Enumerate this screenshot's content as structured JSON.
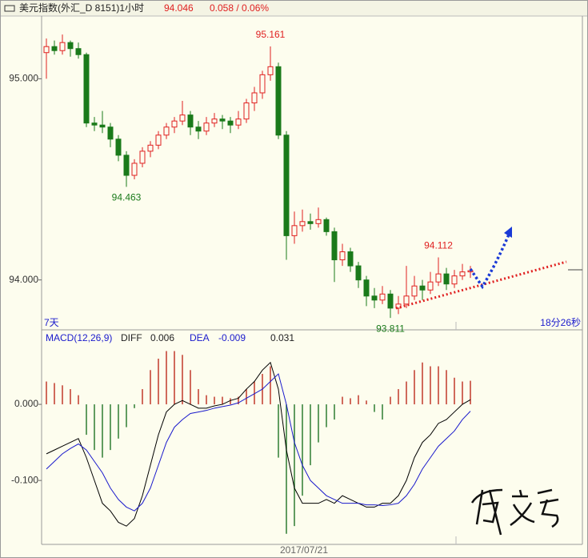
{
  "header": {
    "title": "美元指数(外汇_D 8151)1小时",
    "last": "94.046",
    "change": "0.058 / 0.06%"
  },
  "chart_data": [
    {
      "type": "candlestick",
      "ylim": [
        93.752,
        95.312
      ],
      "yticks": [
        {
          "value": 95,
          "label": "95.000"
        },
        {
          "value": 94,
          "label": "94.000"
        }
      ],
      "up_color": "#e02020",
      "down_color": "#1a7a1a",
      "annotations": [
        "95.161",
        "94.463",
        "94.112",
        "93.811"
      ],
      "left_label": "7天",
      "right_label": "18分26秒",
      "ohlc": [
        [
          95.13,
          95.2,
          95.0,
          95.16
        ],
        [
          95.16,
          95.19,
          95.12,
          95.14
        ],
        [
          95.14,
          95.22,
          95.12,
          95.18
        ],
        [
          95.18,
          95.19,
          95.11,
          95.15
        ],
        [
          95.15,
          95.18,
          95.1,
          95.12
        ],
        [
          95.12,
          95.13,
          94.76,
          94.78
        ],
        [
          94.78,
          94.81,
          94.74,
          94.77
        ],
        [
          94.77,
          94.84,
          94.73,
          94.76
        ],
        [
          94.76,
          94.78,
          94.66,
          94.7
        ],
        [
          94.7,
          94.72,
          94.59,
          94.62
        ],
        [
          94.62,
          94.64,
          94.463,
          94.52
        ],
        [
          94.52,
          94.6,
          94.5,
          94.58
        ],
        [
          94.58,
          94.66,
          94.56,
          94.64
        ],
        [
          94.64,
          94.69,
          94.61,
          94.67
        ],
        [
          94.67,
          94.74,
          94.65,
          94.72
        ],
        [
          94.72,
          94.78,
          94.7,
          94.76
        ],
        [
          94.76,
          94.81,
          94.73,
          94.79
        ],
        [
          94.79,
          94.89,
          94.77,
          94.82
        ],
        [
          94.82,
          94.84,
          94.72,
          94.76
        ],
        [
          94.76,
          94.79,
          94.7,
          94.74
        ],
        [
          94.74,
          94.81,
          94.72,
          94.78
        ],
        [
          94.78,
          94.83,
          94.76,
          94.8
        ],
        [
          94.8,
          94.82,
          94.75,
          94.79
        ],
        [
          94.79,
          94.81,
          94.73,
          94.77
        ],
        [
          94.77,
          94.84,
          94.75,
          94.8
        ],
        [
          94.8,
          94.9,
          94.78,
          94.88
        ],
        [
          94.88,
          94.96,
          94.84,
          94.93
        ],
        [
          94.93,
          95.04,
          94.9,
          95.02
        ],
        [
          95.02,
          95.161,
          94.99,
          95.06
        ],
        [
          95.06,
          95.08,
          94.7,
          94.72
        ],
        [
          94.72,
          94.74,
          94.1,
          94.22
        ],
        [
          94.22,
          94.34,
          94.18,
          94.27
        ],
        [
          94.27,
          94.35,
          94.24,
          94.29
        ],
        [
          94.29,
          94.33,
          94.25,
          94.28
        ],
        [
          94.28,
          94.36,
          94.26,
          94.3
        ],
        [
          94.3,
          94.31,
          94.22,
          94.24
        ],
        [
          94.24,
          94.26,
          93.99,
          94.1
        ],
        [
          94.1,
          94.18,
          94.07,
          94.14
        ],
        [
          94.14,
          94.16,
          94.04,
          94.07
        ],
        [
          94.07,
          94.09,
          93.96,
          94.0
        ],
        [
          94.0,
          94.02,
          93.87,
          93.92
        ],
        [
          93.92,
          93.96,
          93.86,
          93.9
        ],
        [
          93.9,
          93.97,
          93.88,
          93.93
        ],
        [
          93.93,
          93.95,
          93.811,
          93.86
        ],
        [
          93.86,
          93.92,
          93.83,
          93.88
        ],
        [
          93.88,
          94.07,
          93.86,
          93.92
        ],
        [
          93.92,
          94.02,
          93.9,
          93.97
        ],
        [
          93.97,
          94.0,
          93.9,
          93.95
        ],
        [
          93.95,
          94.04,
          93.93,
          93.99
        ],
        [
          93.99,
          94.112,
          93.97,
          94.03
        ],
        [
          94.03,
          94.06,
          93.95,
          93.98
        ],
        [
          93.98,
          94.05,
          93.96,
          94.02
        ],
        [
          94.02,
          94.08,
          94.0,
          94.04
        ],
        [
          94.04,
          94.07,
          94.01,
          94.046
        ]
      ]
    },
    {
      "type": "macd",
      "label": "MACD(12,26,9)",
      "diff_value": "0.006",
      "dea_value": "-0.009",
      "macd_value": "0.031",
      "date_label": "2017/07/21",
      "ylim": [
        -0.184,
        0.0737
      ],
      "yticks": [
        {
          "value": 0,
          "label": "0.000"
        },
        {
          "value": -0.1,
          "label": "-0.100"
        }
      ],
      "up_color": "#c0392b",
      "down_color": "#2e7d32",
      "values": [
        0.03,
        0.028,
        0.025,
        0.02,
        0.012,
        -0.04,
        -0.06,
        -0.07,
        -0.06,
        -0.045,
        -0.03,
        -0.005,
        0.02,
        0.045,
        0.06,
        0.07,
        0.07,
        0.065,
        0.045,
        0.02,
        0.012,
        0.01,
        0.01,
        0.008,
        0.01,
        0.02,
        0.03,
        0.04,
        0.05,
        -0.07,
        -0.17,
        -0.16,
        -0.12,
        -0.08,
        -0.05,
        -0.03,
        -0.02,
        0.01,
        0.008,
        0.012,
        0.005,
        -0.01,
        -0.02,
        0.01,
        0.02,
        0.03,
        0.045,
        0.055,
        0.05,
        0.05,
        0.045,
        0.035,
        0.03,
        0.031
      ],
      "series": [
        {
          "name": "DIFF",
          "color": "#000000",
          "values": [
            -0.065,
            -0.06,
            -0.055,
            -0.05,
            -0.045,
            -0.07,
            -0.1,
            -0.13,
            -0.14,
            -0.155,
            -0.16,
            -0.15,
            -0.12,
            -0.08,
            -0.04,
            -0.01,
            0.0,
            0.005,
            0.0,
            -0.005,
            -0.005,
            -0.002,
            0.0,
            0.005,
            0.008,
            0.02,
            0.03,
            0.045,
            0.055,
            0.02,
            -0.06,
            -0.11,
            -0.13,
            -0.13,
            -0.13,
            -0.125,
            -0.13,
            -0.12,
            -0.125,
            -0.13,
            -0.135,
            -0.135,
            -0.13,
            -0.13,
            -0.12,
            -0.1,
            -0.07,
            -0.05,
            -0.04,
            -0.025,
            -0.02,
            -0.01,
            0.0,
            0.006
          ]
        },
        {
          "name": "DEA",
          "color": "#1a1acc",
          "values": [
            -0.085,
            -0.075,
            -0.065,
            -0.058,
            -0.052,
            -0.06,
            -0.075,
            -0.09,
            -0.11,
            -0.125,
            -0.135,
            -0.14,
            -0.13,
            -0.11,
            -0.08,
            -0.05,
            -0.03,
            -0.02,
            -0.012,
            -0.01,
            -0.008,
            -0.005,
            -0.003,
            -0.001,
            0.002,
            0.008,
            0.014,
            0.02,
            0.03,
            0.04,
            0.0,
            -0.05,
            -0.08,
            -0.1,
            -0.11,
            -0.12,
            -0.125,
            -0.13,
            -0.13,
            -0.13,
            -0.132,
            -0.132,
            -0.133,
            -0.132,
            -0.13,
            -0.12,
            -0.105,
            -0.085,
            -0.07,
            -0.055,
            -0.045,
            -0.035,
            -0.02,
            -0.009
          ]
        }
      ]
    }
  ]
}
